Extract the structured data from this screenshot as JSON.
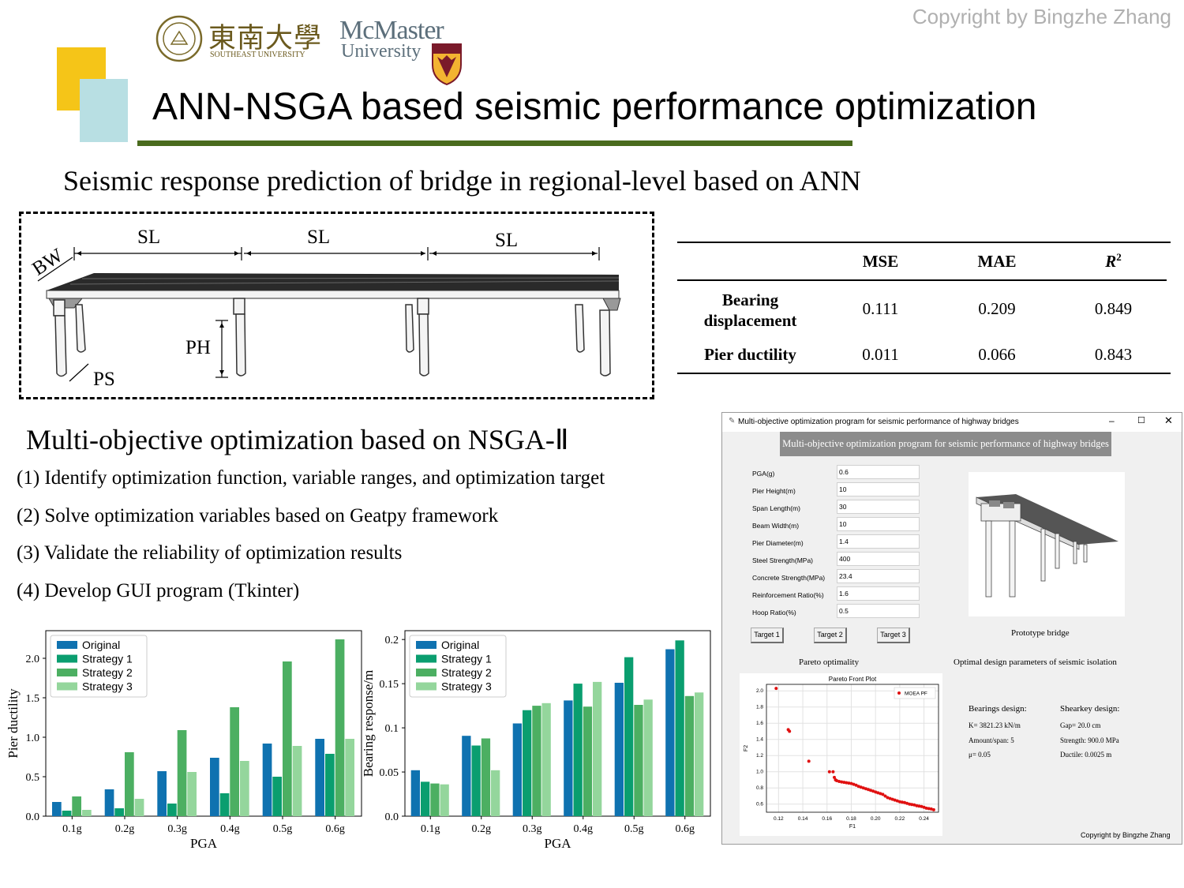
{
  "header": {
    "copyright": "Copyright by Bingzhe Zhang",
    "seu_logo_cn": "東南大學",
    "seu_logo_en": "SOUTHEAST UNIVERSITY",
    "mcmaster_line1": "McMaster",
    "mcmaster_line2": "University",
    "title": "ANN-NSGA based seismic performance optimization",
    "colors": {
      "yellow": "#f5c518",
      "light_blue": "#b8dfe3",
      "rule_green": "#4a6b1e"
    }
  },
  "section1": {
    "title": "Seismic response prediction of bridge in regional-level based on ANN",
    "bridge_labels": {
      "bw": "BW",
      "sl": "SL",
      "ph": "PH",
      "ps": "PS"
    }
  },
  "metrics_table": {
    "headers": [
      "MSE",
      "MAE",
      "R"
    ],
    "r_superscript": "2",
    "rows": [
      {
        "label_line1": "Bearing",
        "label_line2": "displacement",
        "mse": "0.111",
        "mae": "0.209",
        "r2": "0.849"
      },
      {
        "label_line1": "Pier ductility",
        "label_line2": "",
        "mse": "0.011",
        "mae": "0.066",
        "r2": "0.843"
      }
    ]
  },
  "section2": {
    "title": "Multi-objective optimization based on NSGA-Ⅱ",
    "steps": [
      "(1) Identify optimization function, variable ranges, and optimization target",
      "(2) Solve optimization variables based on Geatpy framework",
      "(3) Validate the reliability of optimization results",
      "(4) Develop GUI program (Tkinter)"
    ]
  },
  "gui": {
    "window_title": "Multi-objective optimization program for seismic performance of highway bridges",
    "banner": "Multi-objective optimization program for seismic performance of highway bridges",
    "params": [
      {
        "label": "PGA(g)",
        "value": "0.6"
      },
      {
        "label": "Pier Height(m)",
        "value": "10"
      },
      {
        "label": "Span Length(m)",
        "value": "30"
      },
      {
        "label": "Beam Width(m)",
        "value": "10"
      },
      {
        "label": "Pier Diameter(m)",
        "value": "1.4"
      },
      {
        "label": "Steel Strength(MPa)",
        "value": "400"
      },
      {
        "label": "Concrete Strength(MPa)",
        "value": "23.4"
      },
      {
        "label": "Reinforcement Ratio(%)",
        "value": "1.6"
      },
      {
        "label": "Hoop Ratio(%)",
        "value": "0.5"
      }
    ],
    "buttons": [
      "Target 1",
      "Target 2",
      "Target 3"
    ],
    "prototype_label": "Prototype bridge",
    "pareto_label": "Pareto optimality",
    "optimal_label": "Optimal design parameters of seismic isolation",
    "bearings": {
      "title": "Bearings design:",
      "lines": [
        "K= 3821.23 kN/m",
        "Amount/span: 5",
        "μ= 0.05"
      ]
    },
    "shearkey": {
      "title": "Shearkey design:",
      "lines": [
        "Gap= 20.0 cm",
        "Strength: 900.0 MPa",
        "Ductile: 0.0025 m"
      ]
    },
    "copyright": "Copyright by Bingzhe Zhang"
  },
  "chart_data": [
    {
      "type": "bar",
      "title": "",
      "xlabel": "PGA",
      "ylabel": "Pier ductility",
      "categories": [
        "0.1g",
        "0.2g",
        "0.3g",
        "0.4g",
        "0.5g",
        "0.6g"
      ],
      "ylim": [
        0,
        2.35
      ],
      "yticks": [
        "0.0",
        "0.5",
        "1.0",
        "1.5",
        "2.0"
      ],
      "legend_position": "top-left",
      "series": [
        {
          "name": "Original",
          "color": "#0f72b0",
          "values": [
            0.18,
            0.34,
            0.57,
            0.74,
            0.92,
            0.98
          ]
        },
        {
          "name": "Strategy 1",
          "color": "#0a9e6f",
          "values": [
            0.07,
            0.1,
            0.16,
            0.29,
            0.5,
            0.79
          ]
        },
        {
          "name": "Strategy 2",
          "color": "#4caf62",
          "values": [
            0.25,
            0.81,
            1.09,
            1.38,
            1.96,
            2.24
          ]
        },
        {
          "name": "Strategy 3",
          "color": "#94d69c",
          "values": [
            0.08,
            0.22,
            0.56,
            0.7,
            0.89,
            0.98
          ]
        }
      ]
    },
    {
      "type": "bar",
      "title": "",
      "xlabel": "PGA",
      "ylabel": "Bearing response/m",
      "categories": [
        "0.1g",
        "0.2g",
        "0.3g",
        "0.4g",
        "0.5g",
        "0.6g"
      ],
      "ylim": [
        0,
        0.21
      ],
      "yticks": [
        "0.0",
        "0.05",
        "0.1",
        "0.15",
        "0.2"
      ],
      "legend_position": "top-left",
      "series": [
        {
          "name": "Original",
          "color": "#0f72b0",
          "values": [
            0.052,
            0.091,
            0.105,
            0.131,
            0.151,
            0.189
          ]
        },
        {
          "name": "Strategy 1",
          "color": "#0a9e6f",
          "values": [
            0.039,
            0.08,
            0.12,
            0.15,
            0.18,
            0.199
          ]
        },
        {
          "name": "Strategy 2",
          "color": "#4caf62",
          "values": [
            0.037,
            0.088,
            0.125,
            0.124,
            0.126,
            0.136
          ]
        },
        {
          "name": "Strategy 3",
          "color": "#94d69c",
          "values": [
            0.036,
            0.052,
            0.128,
            0.152,
            0.132,
            0.14
          ]
        }
      ]
    },
    {
      "type": "scatter",
      "title": "Pareto Front Plot",
      "xlabel": "F1",
      "ylabel": "F2",
      "legend": "MOEA PF",
      "legend_position": "top-right",
      "color": "#e01010",
      "xlim": [
        0.11,
        0.252
      ],
      "ylim": [
        0.5,
        2.08
      ],
      "xticks": [
        "0.12",
        "0.14",
        "0.16",
        "0.18",
        "0.20",
        "0.22",
        "0.24"
      ],
      "yticks": [
        "0.6",
        "0.8",
        "1.0",
        "1.2",
        "1.4",
        "1.6",
        "1.8",
        "2.0"
      ],
      "x": [
        0.118,
        0.128,
        0.129,
        0.145,
        0.162,
        0.165,
        0.166,
        0.167,
        0.168,
        0.17,
        0.172,
        0.174,
        0.176,
        0.178,
        0.18,
        0.182,
        0.184,
        0.186,
        0.188,
        0.19,
        0.192,
        0.194,
        0.196,
        0.198,
        0.2,
        0.202,
        0.204,
        0.206,
        0.208,
        0.21,
        0.212,
        0.214,
        0.216,
        0.218,
        0.22,
        0.222,
        0.224,
        0.226,
        0.228,
        0.23,
        0.232,
        0.234,
        0.236,
        0.238,
        0.24,
        0.242,
        0.244,
        0.246,
        0.248
      ],
      "y": [
        2.03,
        1.52,
        1.5,
        1.13,
        1.0,
        1.0,
        0.93,
        0.9,
        0.89,
        0.88,
        0.875,
        0.87,
        0.865,
        0.86,
        0.855,
        0.845,
        0.835,
        0.82,
        0.81,
        0.8,
        0.79,
        0.78,
        0.77,
        0.76,
        0.75,
        0.74,
        0.73,
        0.72,
        0.7,
        0.68,
        0.67,
        0.66,
        0.65,
        0.64,
        0.63,
        0.625,
        0.62,
        0.61,
        0.6,
        0.595,
        0.59,
        0.58,
        0.575,
        0.57,
        0.56,
        0.55,
        0.545,
        0.54,
        0.53
      ]
    }
  ]
}
